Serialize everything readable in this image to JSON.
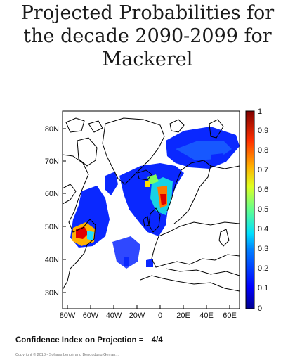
{
  "title_lines": [
    "Projected Probabilities for",
    "the decade 2090-2099 for",
    "Mackerel"
  ],
  "map": {
    "lat_ticks": [
      "80N",
      "70N",
      "60N",
      "50N",
      "40N",
      "30N"
    ],
    "lon_ticks": [
      "80W",
      "60W",
      "40W",
      "20W",
      "0",
      "20E",
      "40E",
      "60E"
    ],
    "colorbar_ticks": [
      "1",
      "0.9",
      "0.8",
      "0.7",
      "0.6",
      "0.5",
      "0.4",
      "0.3",
      "0.2",
      "0.1",
      "0"
    ],
    "colorbar_colors": [
      "#00008f",
      "#0000ff",
      "#0060ff",
      "#00c0ff",
      "#30ffcf",
      "#90ff70",
      "#f0ff10",
      "#ffb000",
      "#ff5000",
      "#f00000",
      "#800000"
    ],
    "land_color": "#ffffff",
    "coast_color": "#000000"
  },
  "confidence": {
    "label": "Confidence Index on Projection =",
    "value": "4/4"
  },
  "copyright": "Copyright © 2018 - Sohaas Lenoir and Benoudung Gerran..."
}
